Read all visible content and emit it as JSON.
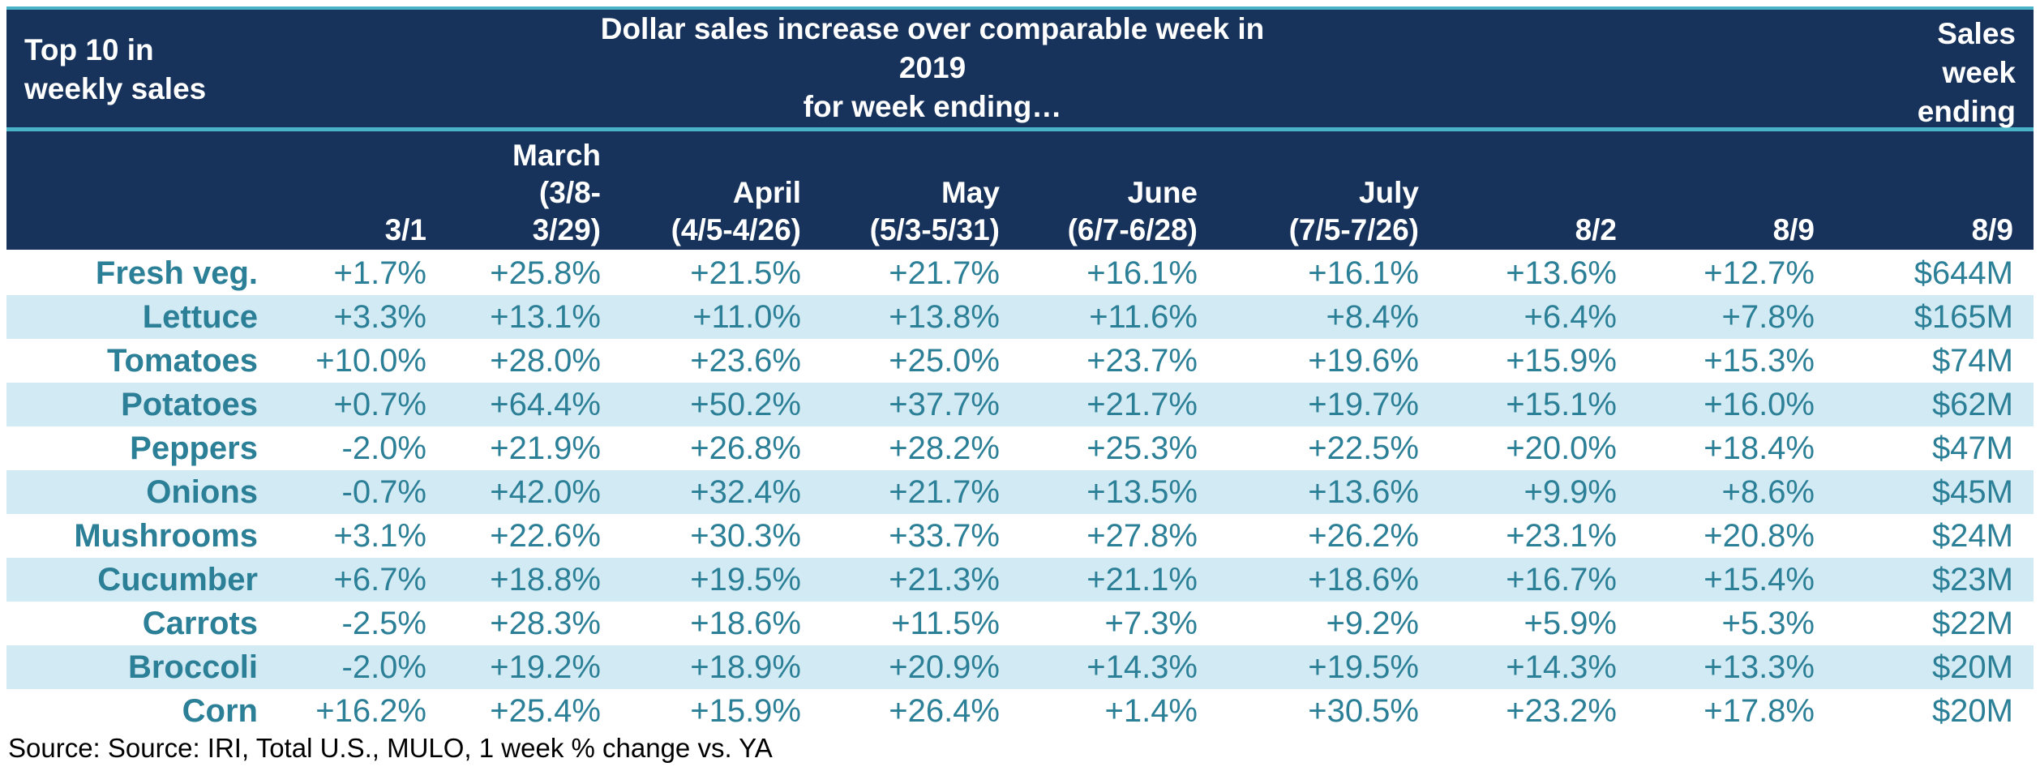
{
  "header": {
    "corner_lines": [
      "Top 10 in",
      "weekly sales"
    ],
    "banner_lines": [
      "Dollar sales increase over comparable week in 2019",
      "for week ending…"
    ],
    "right_lines": [
      "Sales",
      "week",
      "ending"
    ]
  },
  "chart_data": {
    "type": "table",
    "columns": [
      {
        "label_lines": [
          "3/1"
        ]
      },
      {
        "label_lines": [
          "March",
          "(3/8-",
          "3/29)"
        ]
      },
      {
        "label_lines": [
          "April",
          "(4/5-4/26)"
        ]
      },
      {
        "label_lines": [
          "May",
          "(5/3-5/31)"
        ]
      },
      {
        "label_lines": [
          "June",
          "(6/7-6/28)"
        ]
      },
      {
        "label_lines": [
          "July",
          "(7/5-7/26)"
        ]
      },
      {
        "label_lines": [
          "8/2"
        ]
      },
      {
        "label_lines": [
          "8/9"
        ]
      },
      {
        "label_lines": [
          "8/9"
        ]
      }
    ],
    "rows": [
      {
        "name": "Fresh veg.",
        "values": [
          "+1.7%",
          "+25.8%",
          "+21.5%",
          "+21.7%",
          "+16.1%",
          "+16.1%",
          "+13.6%",
          "+12.7%",
          "$644M"
        ]
      },
      {
        "name": "Lettuce",
        "values": [
          "+3.3%",
          "+13.1%",
          "+11.0%",
          "+13.8%",
          "+11.6%",
          "+8.4%",
          "+6.4%",
          "+7.8%",
          "$165M"
        ]
      },
      {
        "name": "Tomatoes",
        "values": [
          "+10.0%",
          "+28.0%",
          "+23.6%",
          "+25.0%",
          "+23.7%",
          "+19.6%",
          "+15.9%",
          "+15.3%",
          "$74M"
        ]
      },
      {
        "name": "Potatoes",
        "values": [
          "+0.7%",
          "+64.4%",
          "+50.2%",
          "+37.7%",
          "+21.7%",
          "+19.7%",
          "+15.1%",
          "+16.0%",
          "$62M"
        ]
      },
      {
        "name": "Peppers",
        "values": [
          "-2.0%",
          "+21.9%",
          "+26.8%",
          "+28.2%",
          "+25.3%",
          "+22.5%",
          "+20.0%",
          "+18.4%",
          "$47M"
        ]
      },
      {
        "name": "Onions",
        "values": [
          "-0.7%",
          "+42.0%",
          "+32.4%",
          "+21.7%",
          "+13.5%",
          "+13.6%",
          "+9.9%",
          "+8.6%",
          "$45M"
        ]
      },
      {
        "name": "Mushrooms",
        "values": [
          "+3.1%",
          "+22.6%",
          "+30.3%",
          "+33.7%",
          "+27.8%",
          "+26.2%",
          "+23.1%",
          "+20.8%",
          "$24M"
        ]
      },
      {
        "name": "Cucumber",
        "values": [
          "+6.7%",
          "+18.8%",
          "+19.5%",
          "+21.3%",
          "+21.1%",
          "+18.6%",
          "+16.7%",
          "+15.4%",
          "$23M"
        ]
      },
      {
        "name": "Carrots",
        "values": [
          "-2.5%",
          "+28.3%",
          "+18.6%",
          "+11.5%",
          "+7.3%",
          "+9.2%",
          "+5.9%",
          "+5.3%",
          "$22M"
        ]
      },
      {
        "name": "Broccoli",
        "values": [
          "-2.0%",
          "+19.2%",
          "+18.9%",
          "+20.9%",
          "+14.3%",
          "+19.5%",
          "+14.3%",
          "+13.3%",
          "$20M"
        ]
      },
      {
        "name": "Corn",
        "values": [
          "+16.2%",
          "+25.4%",
          "+15.9%",
          "+26.4%",
          "+1.4%",
          "+30.5%",
          "+23.2%",
          "+17.8%",
          "$20M"
        ]
      }
    ]
  },
  "source": "Source: Source: IRI, Total U.S., MULO, 1 week % change vs. YA",
  "colors": {
    "header_bg": "#17335c",
    "header_rule": "#4bb3c8",
    "row_shade": "#d2eaf3",
    "value_text": "#2b7f96",
    "header_text": "#ffffff"
  }
}
